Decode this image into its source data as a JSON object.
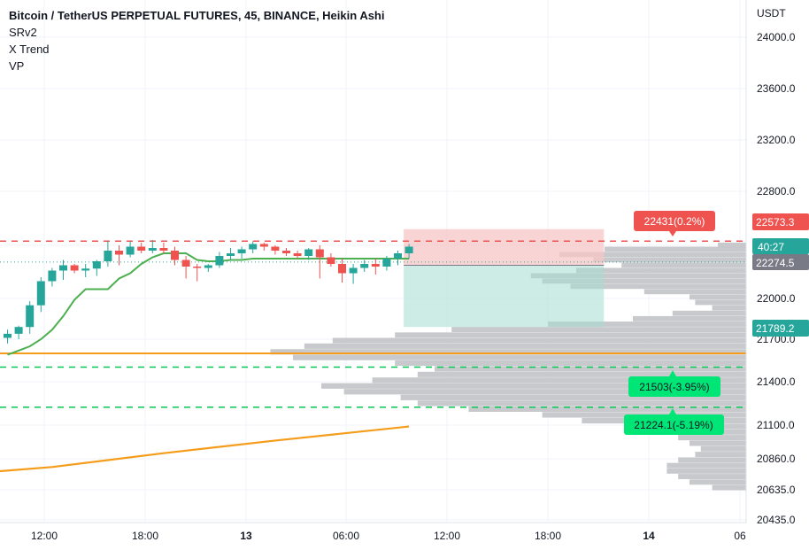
{
  "header": {
    "title": "Bitcoin / TetherUS PERPETUAL FUTURES, 45, BINANCE, Heikin Ashi",
    "indicators": [
      "SRv2",
      "X Trend",
      "VP"
    ]
  },
  "colors": {
    "up": "#26a69a",
    "down": "#ef5350",
    "trend": "#4caf50",
    "orange": "#f59c1a",
    "profile": "#c5c6c9",
    "grid": "#f0f3fa",
    "resistance": "#ef5350",
    "support": "#00c853"
  },
  "chart_data": {
    "type": "candlestick",
    "currency_label": "USDT",
    "y_ticks": [
      "24000.0",
      "23600.0",
      "23200.0",
      "22800.0",
      "22000.0",
      "21700.0",
      "21400.0",
      "21100.0",
      "20860.0",
      "20635.0",
      "20435.0"
    ],
    "x_ticks": [
      "12:00",
      "18:00",
      "13",
      "06:00",
      "12:00",
      "18:00",
      "14",
      "06"
    ],
    "price_labels": {
      "resistance": "22573.3",
      "countdown": "40:27",
      "last_price": "22274.5",
      "support_level": "21789.2"
    },
    "annotations": {
      "target": "22431(0.2%)",
      "support1": "21503(-3.95%)",
      "support2": "21224.1(-5.19%)"
    },
    "candles": [
      {
        "o": 21710,
        "h": 21770,
        "l": 21670,
        "c": 21740
      },
      {
        "o": 21740,
        "h": 21800,
        "l": 21700,
        "c": 21790
      },
      {
        "o": 21790,
        "h": 21980,
        "l": 21740,
        "c": 21950
      },
      {
        "o": 21950,
        "h": 22160,
        "l": 21900,
        "c": 22130
      },
      {
        "o": 22130,
        "h": 22230,
        "l": 22090,
        "c": 22210
      },
      {
        "o": 22210,
        "h": 22290,
        "l": 22140,
        "c": 22250
      },
      {
        "o": 22250,
        "h": 22260,
        "l": 22190,
        "c": 22210
      },
      {
        "o": 22210,
        "h": 22260,
        "l": 22160,
        "c": 22225
      },
      {
        "o": 22225,
        "h": 22290,
        "l": 22170,
        "c": 22280
      },
      {
        "o": 22280,
        "h": 22430,
        "l": 22240,
        "c": 22360
      },
      {
        "o": 22360,
        "h": 22400,
        "l": 22250,
        "c": 22330
      },
      {
        "o": 22330,
        "h": 22430,
        "l": 22310,
        "c": 22390
      },
      {
        "o": 22390,
        "h": 22420,
        "l": 22340,
        "c": 22360
      },
      {
        "o": 22360,
        "h": 22440,
        "l": 22340,
        "c": 22380
      },
      {
        "o": 22380,
        "h": 22420,
        "l": 22340,
        "c": 22360
      },
      {
        "o": 22360,
        "h": 22390,
        "l": 22250,
        "c": 22290
      },
      {
        "o": 22290,
        "h": 22320,
        "l": 22150,
        "c": 22240
      },
      {
        "o": 22240,
        "h": 22260,
        "l": 22130,
        "c": 22230
      },
      {
        "o": 22230,
        "h": 22260,
        "l": 22200,
        "c": 22250
      },
      {
        "o": 22250,
        "h": 22350,
        "l": 22230,
        "c": 22320
      },
      {
        "o": 22320,
        "h": 22380,
        "l": 22290,
        "c": 22340
      },
      {
        "o": 22340,
        "h": 22390,
        "l": 22300,
        "c": 22370
      },
      {
        "o": 22370,
        "h": 22430,
        "l": 22340,
        "c": 22410
      },
      {
        "o": 22410,
        "h": 22420,
        "l": 22360,
        "c": 22390
      },
      {
        "o": 22390,
        "h": 22400,
        "l": 22330,
        "c": 22360
      },
      {
        "o": 22360,
        "h": 22380,
        "l": 22320,
        "c": 22340
      },
      {
        "o": 22340,
        "h": 22360,
        "l": 22300,
        "c": 22320
      },
      {
        "o": 22320,
        "h": 22380,
        "l": 22290,
        "c": 22370
      },
      {
        "o": 22370,
        "h": 22400,
        "l": 22150,
        "c": 22310
      },
      {
        "o": 22310,
        "h": 22340,
        "l": 22240,
        "c": 22260
      },
      {
        "o": 22260,
        "h": 22300,
        "l": 22120,
        "c": 22190
      },
      {
        "o": 22190,
        "h": 22260,
        "l": 22110,
        "c": 22230
      },
      {
        "o": 22230,
        "h": 22290,
        "l": 22200,
        "c": 22260
      },
      {
        "o": 22260,
        "h": 22300,
        "l": 22180,
        "c": 22240
      },
      {
        "o": 22240,
        "h": 22320,
        "l": 22210,
        "c": 22300
      },
      {
        "o": 22300,
        "h": 22360,
        "l": 22250,
        "c": 22340
      },
      {
        "o": 22340,
        "h": 22410,
        "l": 22300,
        "c": 22390
      }
    ],
    "trend_line": [
      21590,
      21620,
      21650,
      21700,
      21770,
      21870,
      21990,
      22070,
      22070,
      22070,
      22150,
      22190,
      22260,
      22310,
      22340,
      22340,
      22340,
      22290,
      22280,
      22280,
      22290,
      22290,
      22300,
      22300,
      22300,
      22300,
      22300,
      22300,
      22300,
      22300,
      22300,
      22300,
      22300,
      22300,
      22300,
      22300,
      22300
    ],
    "levels": {
      "resistance_price": 22431,
      "support1_price": 21503,
      "support2_price": 21224.1,
      "orange_price": 21600,
      "last_price": 22274.5
    },
    "long_ma": [
      {
        "i": -1,
        "p": 20770
      },
      {
        "i": 4,
        "p": 20800
      },
      {
        "i": 14,
        "p": 20900
      },
      {
        "i": 24,
        "p": 20990
      },
      {
        "i": 36,
        "p": 21090
      }
    ],
    "position": {
      "start_index": 36,
      "bars": 17,
      "entry": 22250,
      "stop": 22520,
      "target": 21790
    },
    "volume_profile": [
      {
        "p": 22400,
        "v": 0.05
      },
      {
        "p": 22370,
        "v": 0.25
      },
      {
        "p": 22330,
        "v": 0.33
      },
      {
        "p": 22290,
        "v": 0.27
      },
      {
        "p": 22250,
        "v": 0.22
      },
      {
        "p": 22210,
        "v": 0.3
      },
      {
        "p": 22170,
        "v": 0.38
      },
      {
        "p": 22130,
        "v": 0.36
      },
      {
        "p": 22090,
        "v": 0.31
      },
      {
        "p": 22050,
        "v": 0.18
      },
      {
        "p": 22010,
        "v": 0.1
      },
      {
        "p": 21970,
        "v": 0.09
      },
      {
        "p": 21930,
        "v": 0.06
      },
      {
        "p": 21890,
        "v": 0.13
      },
      {
        "p": 21850,
        "v": 0.2
      },
      {
        "p": 21810,
        "v": 0.35
      },
      {
        "p": 21770,
        "v": 0.52
      },
      {
        "p": 21730,
        "v": 0.62
      },
      {
        "p": 21690,
        "v": 0.73
      },
      {
        "p": 21650,
        "v": 0.78
      },
      {
        "p": 21610,
        "v": 0.84
      },
      {
        "p": 21570,
        "v": 0.8
      },
      {
        "p": 21530,
        "v": 0.62
      },
      {
        "p": 21490,
        "v": 0.55
      },
      {
        "p": 21450,
        "v": 0.58
      },
      {
        "p": 21410,
        "v": 0.66
      },
      {
        "p": 21370,
        "v": 0.75
      },
      {
        "p": 21330,
        "v": 0.71
      },
      {
        "p": 21290,
        "v": 0.61
      },
      {
        "p": 21250,
        "v": 0.58
      },
      {
        "p": 21210,
        "v": 0.49
      },
      {
        "p": 21170,
        "v": 0.36
      },
      {
        "p": 21130,
        "v": 0.29
      },
      {
        "p": 21090,
        "v": 0.21
      },
      {
        "p": 21050,
        "v": 0.16
      },
      {
        "p": 21010,
        "v": 0.12
      },
      {
        "p": 20970,
        "v": 0.1
      },
      {
        "p": 20930,
        "v": 0.08
      },
      {
        "p": 20890,
        "v": 0.09
      },
      {
        "p": 20850,
        "v": 0.12
      },
      {
        "p": 20810,
        "v": 0.14
      },
      {
        "p": 20770,
        "v": 0.14
      },
      {
        "p": 20730,
        "v": 0.12
      },
      {
        "p": 20690,
        "v": 0.1
      },
      {
        "p": 20650,
        "v": 0.06
      }
    ]
  }
}
